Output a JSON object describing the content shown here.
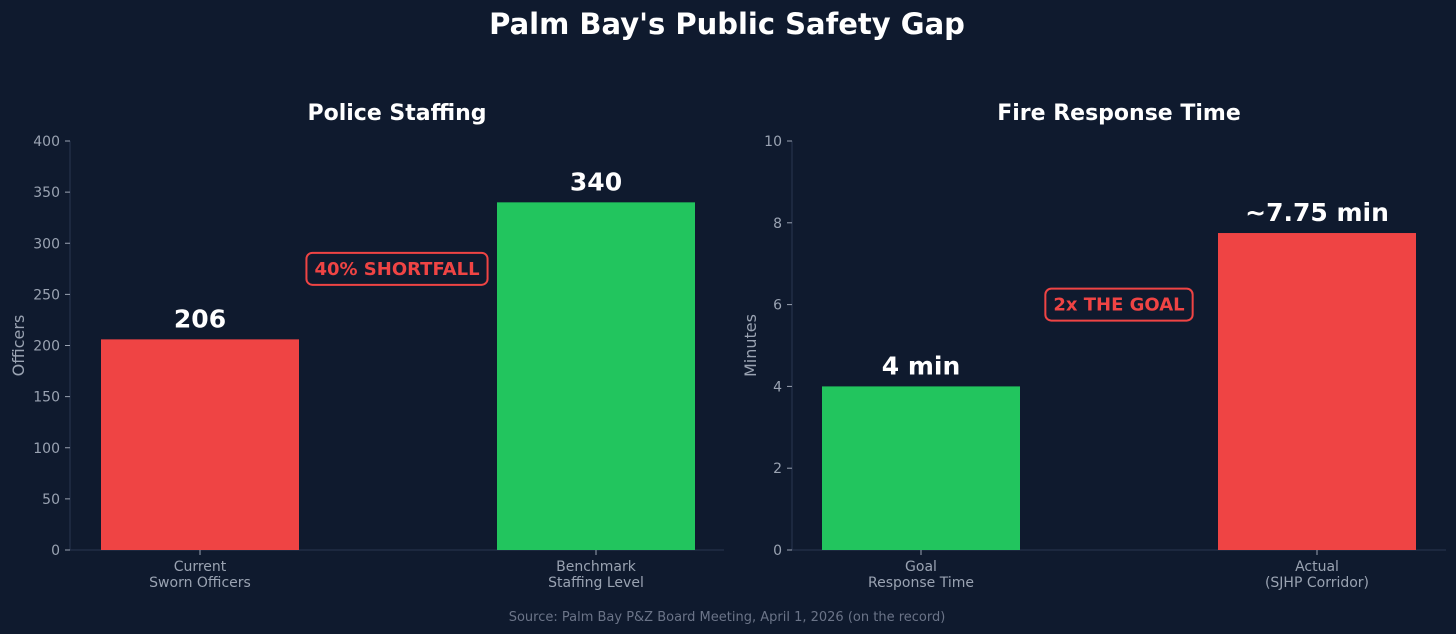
{
  "figure": {
    "title": "Palm Bay's Public Safety Gap",
    "source": "Source: Palm Bay P&Z Board Meeting, April 1, 2026 (on the record)",
    "background": "#0f1a2e"
  },
  "chart_data": [
    {
      "type": "bar",
      "title": "Police Staffing",
      "ylabel": "Officers",
      "xlabel": "",
      "ylim": [
        0,
        400
      ],
      "yticks": [
        0,
        50,
        100,
        150,
        200,
        250,
        300,
        350,
        400
      ],
      "categories": [
        [
          "Current",
          "Sworn Officers"
        ],
        [
          "Benchmark",
          "Staffing Level"
        ]
      ],
      "values": [
        206,
        340
      ],
      "data_labels": [
        "206",
        "340"
      ],
      "colors": [
        "#ef4444",
        "#22c55e"
      ],
      "annotation": {
        "text": "40% SHORTFALL",
        "color": "#ef4444",
        "y": 275
      },
      "grid": false
    },
    {
      "type": "bar",
      "title": "Fire Response Time",
      "ylabel": "Minutes",
      "xlabel": "",
      "ylim": [
        0,
        10
      ],
      "yticks": [
        0,
        2,
        4,
        6,
        8,
        10
      ],
      "categories": [
        [
          "Goal",
          "Response Time"
        ],
        [
          "Actual",
          "(SJHP Corridor)"
        ]
      ],
      "values": [
        4,
        7.75
      ],
      "data_labels": [
        "4 min",
        "~7.75 min"
      ],
      "colors": [
        "#22c55e",
        "#ef4444"
      ],
      "annotation": {
        "text": "2x THE GOAL",
        "color": "#ef4444",
        "y": 6
      },
      "grid": false
    }
  ]
}
